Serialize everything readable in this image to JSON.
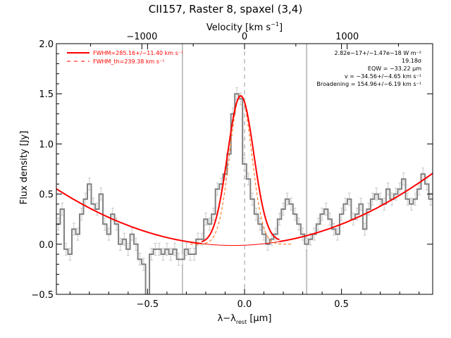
{
  "chart_data": {
    "type": "line",
    "title": "CII157, Raster 8, spaxel (3,4)",
    "xlabel": "λ–λrest [μm]",
    "xlabel_parts": {
      "main": "λ−λ",
      "sub": "rest",
      "units": " [μm]"
    },
    "ylabel": "Flux density [Jy]",
    "top_axis_label": "Velocity [km s⁻¹]",
    "top_axis_parts": {
      "main": "Velocity [km s",
      "sup": "−1",
      "end": "]"
    },
    "xlim": [
      -0.97,
      0.97
    ],
    "ylim": [
      -0.5,
      2.0
    ],
    "x_ticks": [
      -0.5,
      0.0,
      0.5
    ],
    "x_ticklabels": [
      "−0.5",
      "0.0",
      "0.5"
    ],
    "y_ticks": [
      -0.5,
      0.0,
      0.5,
      1.0,
      1.5,
      2.0
    ],
    "y_ticklabels": [
      "−0.5",
      "0.0",
      "0.5",
      "1.0",
      "1.5",
      "2.0"
    ],
    "top_ticks_velocity": [
      -1000,
      0,
      1000
    ],
    "top_ticklabels": [
      "−1000",
      "0",
      "1000"
    ],
    "velocity_per_micron": 1890,
    "grid": false,
    "vertical_lines": [
      -0.32,
      0.32
    ],
    "dashed_zero_line": 0.0,
    "legend": [
      {
        "label": "FWHM=285.16+/−11.40 km s⁻¹",
        "style": "solid",
        "color": "#ff0000"
      },
      {
        "label": "FWHM_th=239.38 km s⁻¹",
        "style": "dashed",
        "color": "#ff0000"
      }
    ],
    "legend_location": "top-left",
    "annotations": [
      "2.82e−17+/−1.47e−18 W m⁻²",
      "19.18σ",
      "EQW = −33.22 μm",
      "v = −34.56+/−4.65 km s⁻¹",
      "Broadening = 154.96+/−6.19 km s⁻¹"
    ],
    "series": [
      {
        "name": "spectrum",
        "style": "step",
        "color": "#808080",
        "x": [
          -0.96,
          -0.94,
          -0.92,
          -0.9,
          -0.88,
          -0.86,
          -0.84,
          -0.82,
          -0.8,
          -0.78,
          -0.76,
          -0.74,
          -0.72,
          -0.7,
          -0.68,
          -0.66,
          -0.64,
          -0.62,
          -0.6,
          -0.58,
          -0.56,
          -0.54,
          -0.52,
          -0.5,
          -0.48,
          -0.46,
          -0.44,
          -0.42,
          -0.4,
          -0.38,
          -0.36,
          -0.34,
          -0.32,
          -0.3,
          -0.28,
          -0.26,
          -0.24,
          -0.22,
          -0.2,
          -0.18,
          -0.16,
          -0.14,
          -0.12,
          -0.1,
          -0.08,
          -0.06,
          -0.04,
          -0.02,
          0.0,
          0.02,
          0.04,
          0.06,
          0.08,
          0.1,
          0.12,
          0.14,
          0.16,
          0.18,
          0.2,
          0.22,
          0.24,
          0.26,
          0.28,
          0.3,
          0.32,
          0.34,
          0.36,
          0.38,
          0.4,
          0.42,
          0.44,
          0.46,
          0.48,
          0.5,
          0.52,
          0.54,
          0.56,
          0.58,
          0.6,
          0.62,
          0.64,
          0.66,
          0.68,
          0.7,
          0.72,
          0.74,
          0.76,
          0.78,
          0.8,
          0.82,
          0.84,
          0.86,
          0.88,
          0.9,
          0.92,
          0.94,
          0.96
        ],
        "y": [
          0.2,
          0.35,
          -0.05,
          -0.1,
          0.15,
          0.1,
          0.3,
          0.45,
          0.6,
          0.4,
          0.35,
          0.5,
          0.2,
          0.1,
          0.3,
          0.2,
          0.0,
          0.05,
          -0.05,
          0.1,
          0.0,
          -0.15,
          -0.2,
          -0.6,
          -0.1,
          -0.05,
          -0.05,
          -0.1,
          -0.05,
          -0.1,
          -0.05,
          -0.15,
          -0.15,
          -0.05,
          -0.1,
          -0.1,
          0.05,
          0.05,
          0.25,
          0.2,
          0.3,
          0.55,
          0.6,
          0.7,
          0.9,
          1.3,
          1.5,
          1.45,
          0.8,
          0.65,
          0.45,
          0.3,
          0.2,
          0.1,
          0.0,
          0.05,
          0.1,
          0.25,
          0.35,
          0.45,
          0.4,
          0.3,
          0.2,
          0.1,
          0.0,
          0.05,
          0.1,
          0.2,
          0.3,
          0.35,
          0.25,
          0.15,
          0.1,
          0.3,
          0.4,
          0.45,
          0.25,
          0.3,
          0.4,
          0.15,
          0.35,
          0.45,
          0.5,
          0.45,
          0.4,
          0.55,
          0.45,
          0.5,
          0.55,
          0.65,
          0.45,
          0.4,
          0.45,
          0.55,
          0.7,
          0.6,
          0.45
        ],
        "err": 0.06
      },
      {
        "name": "fit",
        "style": "solid",
        "color": "#ff0000",
        "model": {
          "type": "gaussian_plus_quadratic",
          "amp": 1.49,
          "center": -0.02,
          "sigma": 0.068,
          "baseline": [
            -0.01,
            0.08,
            0.68
          ]
        }
      },
      {
        "name": "thermal",
        "style": "dashed",
        "color": "#ff6600",
        "model": {
          "type": "gaussian",
          "amp": 1.49,
          "center": -0.02,
          "sigma": 0.057
        }
      }
    ]
  }
}
